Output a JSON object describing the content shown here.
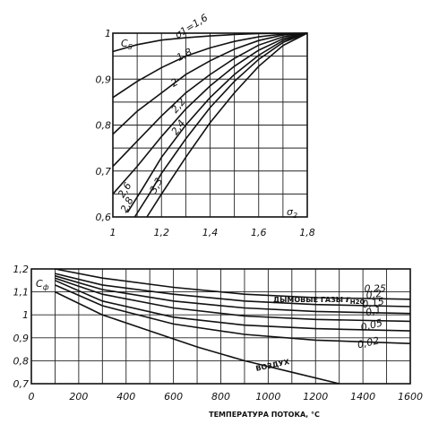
{
  "chart_data": [
    {
      "type": "line",
      "ylabel": "C_S",
      "xlabel": "σ2",
      "xlim": [
        1.0,
        1.8
      ],
      "ylim": [
        0.6,
        1.0
      ],
      "x_ticks": [
        "1",
        "1,2",
        "1,4",
        "1,6",
        "1,8"
      ],
      "y_ticks": [
        "0,6",
        "0,7",
        "0,8",
        "0,9",
        "1"
      ],
      "grid": true,
      "series": [
        {
          "name": "σ1=1,6",
          "points": [
            [
              1.0,
              0.96
            ],
            [
              1.1,
              0.975
            ],
            [
              1.2,
              0.985
            ],
            [
              1.3,
              0.99
            ],
            [
              1.4,
              0.994
            ],
            [
              1.5,
              0.997
            ],
            [
              1.6,
              0.999
            ],
            [
              1.8,
              1.0
            ]
          ]
        },
        {
          "name": "1,8",
          "points": [
            [
              1.0,
              0.86
            ],
            [
              1.1,
              0.895
            ],
            [
              1.2,
              0.925
            ],
            [
              1.3,
              0.95
            ],
            [
              1.4,
              0.968
            ],
            [
              1.5,
              0.982
            ],
            [
              1.6,
              0.992
            ],
            [
              1.7,
              0.998
            ],
            [
              1.8,
              1.0
            ]
          ]
        },
        {
          "name": "2",
          "points": [
            [
              1.0,
              0.78
            ],
            [
              1.1,
              0.83
            ],
            [
              1.2,
              0.87
            ],
            [
              1.3,
              0.91
            ],
            [
              1.4,
              0.94
            ],
            [
              1.5,
              0.965
            ],
            [
              1.6,
              0.984
            ],
            [
              1.7,
              0.996
            ],
            [
              1.8,
              1.0
            ]
          ]
        },
        {
          "name": "2,2",
          "points": [
            [
              1.0,
              0.71
            ],
            [
              1.1,
              0.765
            ],
            [
              1.2,
              0.82
            ],
            [
              1.3,
              0.87
            ],
            [
              1.4,
              0.91
            ],
            [
              1.5,
              0.945
            ],
            [
              1.6,
              0.974
            ],
            [
              1.7,
              0.992
            ],
            [
              1.8,
              1.0
            ]
          ]
        },
        {
          "name": "2,4",
          "points": [
            [
              1.0,
              0.65
            ],
            [
              1.1,
              0.71
            ],
            [
              1.2,
              0.775
            ],
            [
              1.3,
              0.835
            ],
            [
              1.4,
              0.885
            ],
            [
              1.5,
              0.928
            ],
            [
              1.6,
              0.963
            ],
            [
              1.7,
              0.988
            ],
            [
              1.8,
              1.0
            ]
          ]
        },
        {
          "name": "2,6",
          "points": [
            [
              1.06,
              0.61
            ],
            [
              1.12,
              0.66
            ],
            [
              1.2,
              0.73
            ],
            [
              1.3,
              0.8
            ],
            [
              1.4,
              0.86
            ],
            [
              1.5,
              0.91
            ],
            [
              1.6,
              0.952
            ],
            [
              1.7,
              0.984
            ],
            [
              1.8,
              1.0
            ]
          ]
        },
        {
          "name": "2,8",
          "points": [
            [
              1.09,
              0.6
            ],
            [
              1.15,
              0.65
            ],
            [
              1.2,
              0.695
            ],
            [
              1.3,
              0.77
            ],
            [
              1.4,
              0.838
            ],
            [
              1.5,
              0.895
            ],
            [
              1.6,
              0.943
            ],
            [
              1.7,
              0.98
            ],
            [
              1.8,
              1.0
            ]
          ]
        },
        {
          "name": "3,3",
          "points": [
            [
              1.14,
              0.6
            ],
            [
              1.2,
              0.65
            ],
            [
              1.3,
              0.73
            ],
            [
              1.4,
              0.805
            ],
            [
              1.5,
              0.87
            ],
            [
              1.6,
              0.928
            ],
            [
              1.7,
              0.973
            ],
            [
              1.8,
              1.0
            ]
          ]
        }
      ],
      "curve_labels": [
        "σ1=1,6",
        "1,8",
        "2",
        "2,2",
        "2,4",
        "2,6",
        "2,8",
        "3,3"
      ]
    },
    {
      "type": "line",
      "ylabel": "Cф",
      "xlabel": "ТЕМПЕРАТУРА ПОТОКА, °С",
      "xlim": [
        0,
        1600
      ],
      "ylim": [
        0.7,
        1.2
      ],
      "x_ticks": [
        "0",
        "200",
        "400",
        "600",
        "800",
        "1000",
        "1200",
        "1400",
        "1600"
      ],
      "y_ticks": [
        "0,7",
        "0,8",
        "0,9",
        "1",
        "1,1",
        "1,2"
      ],
      "grid": true,
      "legend_title": "ДЫМОВЫЕ ГАЗЫ",
      "legend_param": "r_H2O",
      "series": [
        {
          "name": "0,25",
          "points": [
            [
              100,
              1.2
            ],
            [
              300,
              1.16
            ],
            [
              600,
              1.12
            ],
            [
              900,
              1.09
            ],
            [
              1200,
              1.075
            ],
            [
              1600,
              1.068
            ]
          ]
        },
        {
          "name": "0,2",
          "points": [
            [
              100,
              1.18
            ],
            [
              300,
              1.13
            ],
            [
              600,
              1.09
            ],
            [
              900,
              1.06
            ],
            [
              1200,
              1.045
            ],
            [
              1600,
              1.036
            ]
          ]
        },
        {
          "name": "0,15",
          "points": [
            [
              100,
              1.17
            ],
            [
              300,
              1.11
            ],
            [
              600,
              1.06
            ],
            [
              900,
              1.03
            ],
            [
              1200,
              1.015
            ],
            [
              1600,
              1.006
            ]
          ]
        },
        {
          "name": "0,1",
          "points": [
            [
              100,
              1.16
            ],
            [
              300,
              1.09
            ],
            [
              600,
              1.03
            ],
            [
              900,
              0.995
            ],
            [
              1200,
              0.98
            ],
            [
              1600,
              0.972
            ]
          ]
        },
        {
          "name": "0,05",
          "points": [
            [
              100,
              1.15
            ],
            [
              300,
              1.06
            ],
            [
              600,
              0.99
            ],
            [
              900,
              0.955
            ],
            [
              1200,
              0.94
            ],
            [
              1600,
              0.93
            ]
          ]
        },
        {
          "name": "0,02",
          "points": [
            [
              100,
              1.13
            ],
            [
              300,
              1.04
            ],
            [
              600,
              0.96
            ],
            [
              900,
              0.915
            ],
            [
              1200,
              0.89
            ],
            [
              1600,
              0.875
            ]
          ]
        },
        {
          "name": "ВОЗДУХ",
          "points": [
            [
              100,
              1.1
            ],
            [
              300,
              1.0
            ],
            [
              500,
              0.93
            ],
            [
              700,
              0.86
            ],
            [
              900,
              0.8
            ],
            [
              1100,
              0.75
            ],
            [
              1300,
              0.7
            ]
          ]
        }
      ],
      "curve_labels": [
        "0,25",
        "0,2",
        "0,15",
        "0,1",
        "0,05",
        "0,02",
        "ВОЗДУХ"
      ]
    }
  ]
}
